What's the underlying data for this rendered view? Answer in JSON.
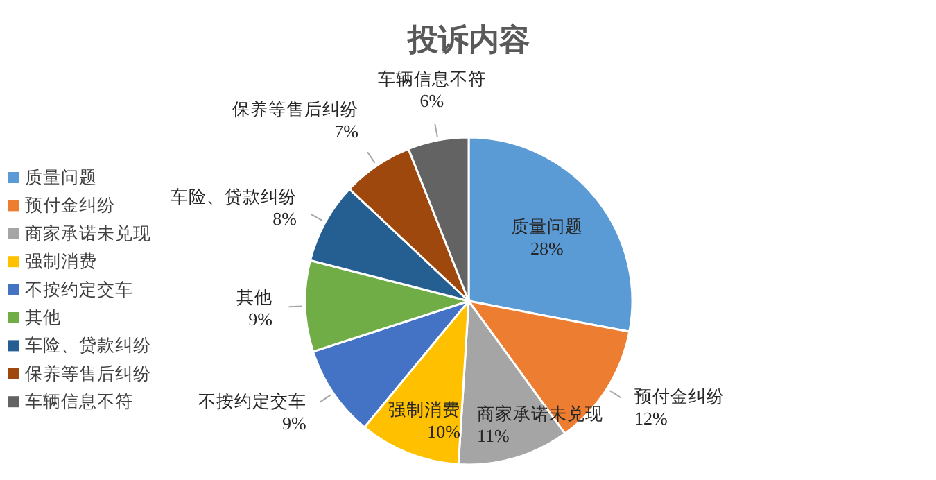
{
  "chart_data": {
    "type": "pie",
    "title": "投诉内容",
    "categories": [
      "质量问题",
      "预付金纠纷",
      "商家承诺未兑现",
      "强制消费",
      "不按约定交车",
      "其他",
      "车险、贷款纠纷",
      "保养等售后纠纷",
      "车辆信息不符"
    ],
    "values": [
      28,
      12,
      11,
      10,
      9,
      9,
      8,
      7,
      6
    ],
    "colors": [
      "#5b9bd5",
      "#ed7d31",
      "#a5a5a5",
      "#ffc000",
      "#4472c4",
      "#70ad47",
      "#255e91",
      "#9e480e",
      "#636363"
    ],
    "value_labels": [
      "28%",
      "12%",
      "11%",
      "10%",
      "9%",
      "9%",
      "8%",
      "7%",
      "6%"
    ],
    "legend": "left"
  }
}
